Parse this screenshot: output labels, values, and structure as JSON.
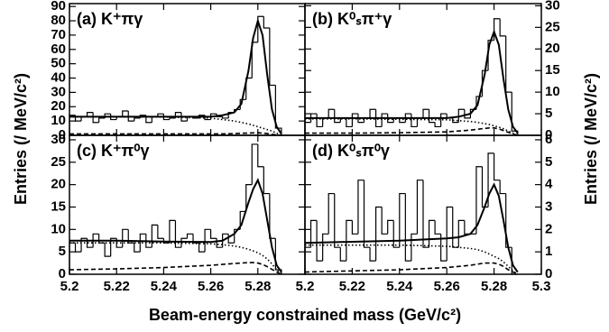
{
  "axis_labels": {
    "x": "Beam-energy constrained mass (GeV/c²)",
    "y": "Entries (/ MeV/c²)"
  },
  "chart_data": [
    {
      "type": "histogram",
      "title": "(a) K⁺πγ",
      "color": "#000000",
      "yaxis_side": "left",
      "x_tick_labels": false,
      "bins": [
        5.2,
        5.2025,
        5.205,
        5.2075,
        5.21,
        5.2125,
        5.215,
        5.2175,
        5.22,
        5.2225,
        5.225,
        5.2275,
        5.23,
        5.2325,
        5.235,
        5.2375,
        5.24,
        5.2425,
        5.245,
        5.2475,
        5.25,
        5.2525,
        5.255,
        5.2575,
        5.26,
        5.2625,
        5.265,
        5.2675,
        5.27,
        5.2725,
        5.275,
        5.2775,
        5.28,
        5.2825,
        5.285,
        5.2875,
        5.29
      ],
      "values": [
        14,
        10,
        13,
        16,
        9,
        12,
        15,
        11,
        13,
        17,
        10,
        12,
        14,
        9,
        13,
        15,
        11,
        12,
        16,
        10,
        13,
        12,
        14,
        11,
        15,
        13,
        12,
        16,
        18,
        25,
        40,
        65,
        83,
        75,
        35,
        5
      ],
      "xlim": [
        5.2,
        5.3
      ],
      "ylim": [
        0,
        92
      ],
      "xticks": [
        5.2,
        5.22,
        5.24,
        5.26,
        5.28
      ],
      "yticks": [
        0,
        10,
        20,
        30,
        40,
        50,
        60,
        70,
        80,
        90
      ],
      "line_x": [
        5.2,
        5.22,
        5.24,
        5.26,
        5.265,
        5.27,
        5.273,
        5.276,
        5.278,
        5.28,
        5.282,
        5.284,
        5.286,
        5.288,
        5.29
      ],
      "lines": [
        {
          "style": "solid",
          "values": [
            13,
            13,
            13,
            13,
            14,
            16,
            22,
            45,
            68,
            80,
            70,
            42,
            18,
            6,
            1
          ]
        },
        {
          "style": "dotted",
          "values": [
            13,
            13,
            12.8,
            12,
            11,
            10,
            9,
            8,
            7,
            6,
            5,
            4,
            3,
            1.5,
            0
          ]
        },
        {
          "style": "dashed",
          "values": [
            1,
            1,
            1,
            1,
            1,
            1.2,
            1.4,
            1.6,
            1.7,
            1.8,
            1.6,
            1.2,
            0.7,
            0.3,
            0
          ]
        }
      ]
    },
    {
      "type": "histogram",
      "title": "(b) K⁰ₛπ⁺γ",
      "color": "#000000",
      "yaxis_side": "right",
      "x_tick_labels": false,
      "bins": [
        5.2,
        5.2025,
        5.205,
        5.2075,
        5.21,
        5.2125,
        5.215,
        5.2175,
        5.22,
        5.2225,
        5.225,
        5.2275,
        5.23,
        5.2325,
        5.235,
        5.2375,
        5.24,
        5.2425,
        5.245,
        5.2475,
        5.25,
        5.2525,
        5.255,
        5.2575,
        5.26,
        5.2625,
        5.265,
        5.2675,
        5.27,
        5.2725,
        5.275,
        5.2775,
        5.28,
        5.2825,
        5.285,
        5.2875,
        5.29
      ],
      "values": [
        3,
        5,
        2,
        4,
        6,
        3,
        4,
        2,
        5,
        3,
        4,
        6,
        2,
        5,
        3,
        4,
        3,
        5,
        2,
        4,
        6,
        3,
        2,
        5,
        4,
        3,
        6,
        4,
        6,
        9,
        15,
        22,
        27,
        23,
        10,
        1
      ],
      "xlim": [
        5.2,
        5.3
      ],
      "ylim": [
        0,
        30.5
      ],
      "xticks": [
        5.2,
        5.22,
        5.24,
        5.26,
        5.28,
        5.3
      ],
      "yticks": [
        0,
        5,
        10,
        15,
        20,
        25,
        30
      ],
      "line_x": [
        5.2,
        5.22,
        5.24,
        5.26,
        5.265,
        5.27,
        5.273,
        5.276,
        5.278,
        5.28,
        5.282,
        5.284,
        5.286,
        5.288,
        5.29
      ],
      "lines": [
        {
          "style": "solid",
          "values": [
            4,
            4,
            4,
            4,
            4.3,
            5,
            7,
            14,
            21,
            24,
            21,
            13,
            6,
            2,
            0.5
          ]
        },
        {
          "style": "dotted",
          "values": [
            3.8,
            3.8,
            3.7,
            3.6,
            3.4,
            3.2,
            3,
            2.7,
            2.5,
            2.2,
            1.9,
            1.5,
            1,
            0.5,
            0
          ]
        },
        {
          "style": "dashed",
          "values": [
            0.5,
            0.5,
            0.6,
            0.8,
            1,
            1.2,
            1.4,
            1.6,
            1.7,
            1.7,
            1.5,
            1.1,
            0.7,
            0.3,
            0
          ]
        }
      ]
    },
    {
      "type": "histogram",
      "title": "(c) K⁺π⁰γ",
      "color": "#000000",
      "yaxis_side": "left",
      "x_tick_labels": true,
      "bins": [
        5.2,
        5.2025,
        5.205,
        5.2075,
        5.21,
        5.2125,
        5.215,
        5.2175,
        5.22,
        5.2225,
        5.225,
        5.2275,
        5.23,
        5.2325,
        5.235,
        5.2375,
        5.24,
        5.2425,
        5.245,
        5.2475,
        5.25,
        5.2525,
        5.255,
        5.2575,
        5.26,
        5.2625,
        5.265,
        5.2675,
        5.27,
        5.2725,
        5.275,
        5.2775,
        5.28,
        5.2825,
        5.285,
        5.2875,
        5.29
      ],
      "values": [
        7,
        5,
        8,
        6,
        9,
        7,
        4,
        8,
        6,
        10,
        7,
        5,
        9,
        6,
        11,
        8,
        7,
        12,
        6,
        8,
        9,
        7,
        5,
        10,
        8,
        6,
        9,
        7,
        10,
        14,
        20,
        29,
        24,
        18,
        8,
        1
      ],
      "xlim": [
        5.2,
        5.3
      ],
      "ylim": [
        0,
        31
      ],
      "xticks": [
        5.2,
        5.22,
        5.24,
        5.26,
        5.28
      ],
      "yticks": [
        0,
        5,
        10,
        15,
        20,
        25,
        30
      ],
      "line_x": [
        5.2,
        5.22,
        5.24,
        5.26,
        5.265,
        5.27,
        5.273,
        5.276,
        5.278,
        5.28,
        5.282,
        5.284,
        5.286,
        5.288,
        5.29
      ],
      "lines": [
        {
          "style": "solid",
          "values": [
            7.5,
            7.5,
            7.3,
            7.2,
            7.5,
            9,
            11,
            16,
            19,
            21,
            18,
            12,
            6,
            2,
            0.5
          ]
        },
        {
          "style": "dotted",
          "values": [
            7,
            7,
            7,
            6.8,
            6.6,
            6.3,
            6,
            5.6,
            5.2,
            4.8,
            4.2,
            3.4,
            2.3,
            1,
            0
          ]
        },
        {
          "style": "dashed",
          "values": [
            1,
            1.2,
            1.5,
            2,
            2.2,
            2.4,
            2.5,
            2.6,
            2.6,
            2.5,
            2.2,
            1.7,
            1.1,
            0.5,
            0
          ]
        }
      ]
    },
    {
      "type": "histogram",
      "title": "(d) K⁰ₛπ⁰γ",
      "color": "#000000",
      "yaxis_side": "right",
      "x_tick_labels": true,
      "bins": [
        5.2,
        5.2025,
        5.205,
        5.2075,
        5.21,
        5.2125,
        5.215,
        5.2175,
        5.22,
        5.2225,
        5.225,
        5.2275,
        5.23,
        5.2325,
        5.235,
        5.2375,
        5.24,
        5.2425,
        5.245,
        5.2475,
        5.25,
        5.2525,
        5.255,
        5.2575,
        5.26,
        5.2625,
        5.265,
        5.2675,
        5.27,
        5.2725,
        5.275,
        5.2775,
        5.28,
        5.2825,
        5.285,
        5.2875,
        5.29
      ],
      "values": [
        1.2,
        2.4,
        0.6,
        1.8,
        3.6,
        1.2,
        0.6,
        2.4,
        1.8,
        4.2,
        1.2,
        0.6,
        3.0,
        1.8,
        2.4,
        1.2,
        3.6,
        0.6,
        1.8,
        4.2,
        1.2,
        2.4,
        1.8,
        0.6,
        3.0,
        1.2,
        2.4,
        1.8,
        1.8,
        4.8,
        3.0,
        5.4,
        4.2,
        3.6,
        1.2,
        0
      ],
      "xlim": [
        5.2,
        5.3
      ],
      "ylim": [
        0,
        6.2
      ],
      "xticks": [
        5.2,
        5.22,
        5.24,
        5.26,
        5.28,
        5.3
      ],
      "yticks": [
        0,
        1,
        2,
        3,
        4,
        5,
        6
      ],
      "line_x": [
        5.2,
        5.22,
        5.24,
        5.26,
        5.265,
        5.27,
        5.273,
        5.276,
        5.278,
        5.28,
        5.282,
        5.284,
        5.286,
        5.288,
        5.29
      ],
      "lines": [
        {
          "style": "solid",
          "values": [
            1.4,
            1.45,
            1.5,
            1.6,
            1.65,
            1.8,
            2.2,
            3,
            3.6,
            4,
            3.5,
            2.4,
            1.2,
            0.4,
            0.1
          ]
        },
        {
          "style": "dotted",
          "values": [
            1.3,
            1.3,
            1.3,
            1.25,
            1.2,
            1.15,
            1.1,
            1,
            0.9,
            0.8,
            0.7,
            0.55,
            0.35,
            0.15,
            0
          ]
        },
        {
          "style": "dashed",
          "values": [
            0.1,
            0.15,
            0.2,
            0.3,
            0.35,
            0.4,
            0.45,
            0.5,
            0.5,
            0.5,
            0.45,
            0.35,
            0.2,
            0.1,
            0
          ]
        }
      ]
    }
  ]
}
